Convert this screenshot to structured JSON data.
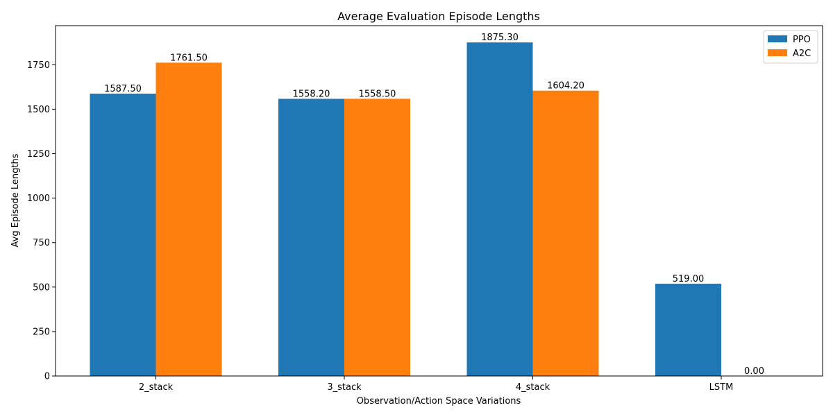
{
  "chart_data": {
    "type": "bar",
    "title": "Average Evaluation Episode Lengths",
    "xlabel": "Observation/Action Space Variations",
    "ylabel": "Avg Episode Lengths",
    "categories": [
      "2_stack",
      "3_stack",
      "4_stack",
      "LSTM"
    ],
    "series": [
      {
        "name": "PPO",
        "color": "#1f77b4",
        "values": [
          1587.5,
          1558.2,
          1875.3,
          519.0
        ],
        "labels": [
          "1587.50",
          "1558.20",
          "1875.30",
          "519.00"
        ]
      },
      {
        "name": "A2C",
        "color": "#ff7f0e",
        "values": [
          1761.5,
          1558.5,
          1604.2,
          0.0
        ],
        "labels": [
          "1761.50",
          "1558.50",
          "1604.20",
          "0.00"
        ]
      }
    ],
    "ylim": [
      0,
      1969.6
    ],
    "yticks": [
      0,
      250,
      500,
      750,
      1000,
      1250,
      1500,
      1750
    ],
    "ytick_labels": [
      "0",
      "250",
      "500",
      "750",
      "1000",
      "1250",
      "1500",
      "1750"
    ],
    "legend_position": "top-right",
    "grid": false
  }
}
